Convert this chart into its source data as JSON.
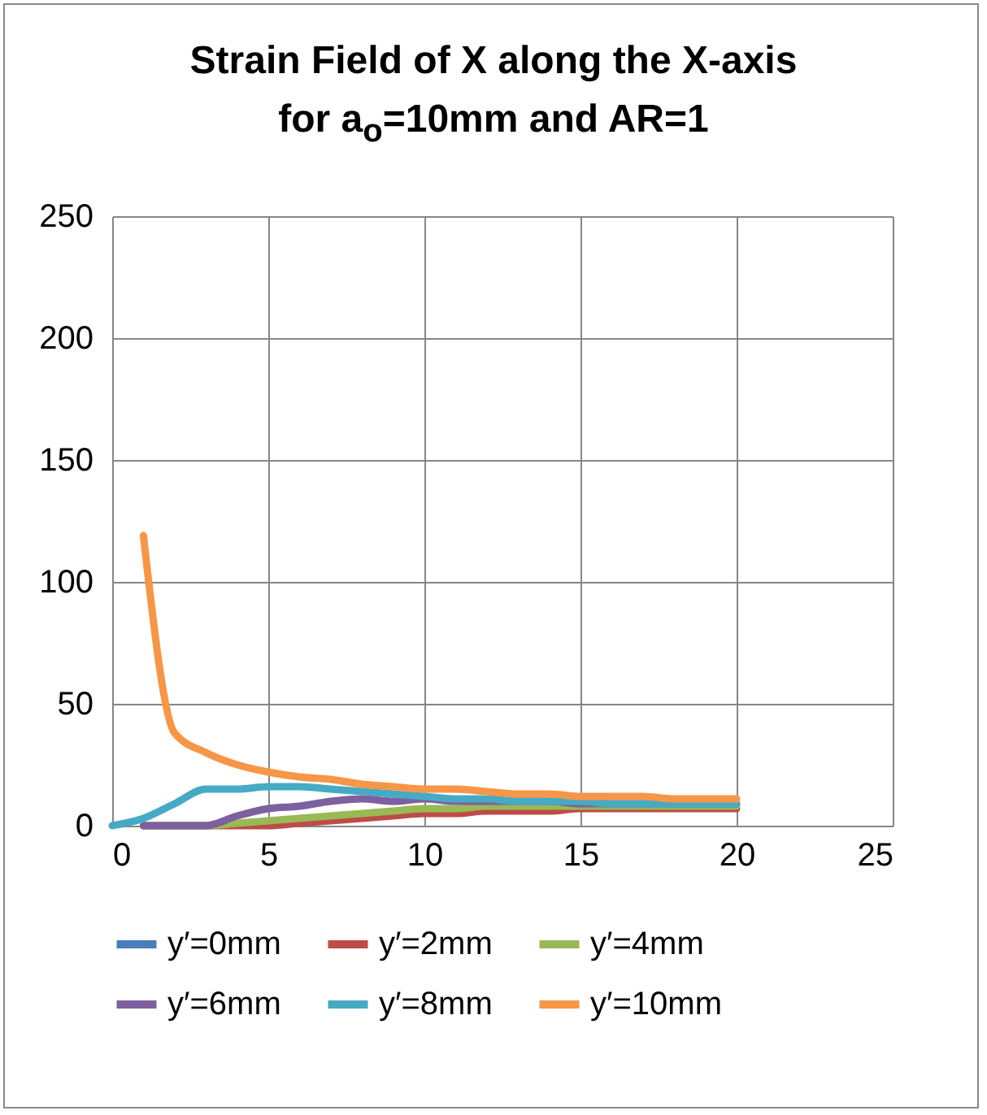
{
  "chart_data": {
    "type": "line",
    "title": "Strain Field of X along the X-axis\nfor a$_{o}$=10mm and AR=1",
    "x": [
      1,
      2,
      3,
      4,
      5,
      6,
      7,
      8,
      9,
      10,
      11,
      12,
      13,
      14,
      15,
      16,
      17,
      18,
      19,
      20
    ],
    "series": [
      {
        "name": "y′=0mm",
        "color": "#4a7ebb",
        "values": [
          null,
          null,
          null,
          null,
          null,
          null,
          null,
          null,
          null,
          null,
          null,
          null,
          null,
          null,
          null,
          null,
          null,
          null,
          null,
          null
        ]
      },
      {
        "name": "y′=2mm",
        "color": "#be4b48",
        "values": [
          0,
          0,
          0,
          0,
          0,
          1,
          2,
          3,
          4,
          5,
          5,
          6,
          6,
          6,
          7,
          7,
          7,
          7,
          7,
          7
        ]
      },
      {
        "name": "y′=4mm",
        "color": "#98b954",
        "values": [
          0,
          0,
          0,
          1,
          2,
          3,
          4,
          5,
          6,
          7,
          7,
          8,
          8,
          8,
          8,
          8,
          8,
          8,
          8,
          8
        ]
      },
      {
        "name": "y′=6mm",
        "color": "#7d60a0",
        "values": [
          0,
          0,
          0,
          4,
          7,
          8,
          10,
          11,
          10,
          11,
          10,
          10,
          10,
          10,
          9,
          9,
          9,
          9,
          9,
          9
        ]
      },
      {
        "name": "y′=8mm",
        "color": "#46aac5",
        "x": [
          0,
          1,
          2,
          3,
          4,
          5,
          6,
          7,
          8,
          9,
          10,
          11,
          12,
          13,
          14,
          15,
          16,
          17,
          18,
          19,
          20
        ],
        "values": [
          0,
          3,
          9,
          15,
          15,
          16,
          16,
          15,
          14,
          13,
          12,
          11,
          11,
          10,
          10,
          10,
          9,
          9,
          9,
          9,
          9
        ]
      },
      {
        "name": "y′=10mm",
        "color": "#f79646",
        "values": [
          119,
          38,
          30,
          25,
          22,
          20,
          19,
          17,
          16,
          15,
          15,
          14,
          13,
          13,
          12,
          12,
          12,
          11,
          11,
          11
        ]
      }
    ],
    "xlim": [
      0,
      25
    ],
    "xticks": [
      0,
      5,
      10,
      15,
      20,
      25
    ],
    "ylim": [
      0,
      250
    ],
    "yticks": [
      0,
      50,
      100,
      150,
      200,
      250
    ],
    "grid": true,
    "legend": "bottom",
    "marker": "none",
    "line_style": "solid"
  }
}
